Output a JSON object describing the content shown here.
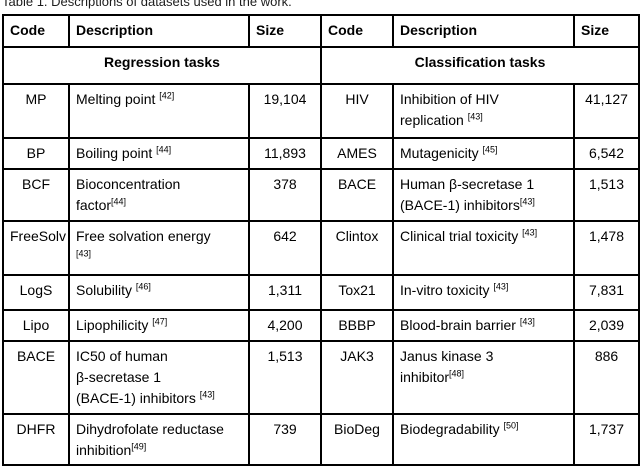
{
  "caption": "Table 1. Descriptions of datasets used in the work.",
  "colors": {
    "border": "#000000",
    "text": "#000000",
    "background": "#ffffff"
  },
  "table": {
    "headers": [
      "Code",
      "Description",
      "Size",
      "Code",
      "Description",
      "Size"
    ],
    "sections": {
      "left": "Regression tasks",
      "right": "Classification tasks"
    },
    "rows": [
      {
        "left": {
          "code": "MP",
          "desc_lines": [
            {
              "text": "Melting point ",
              "ref": "[42]"
            }
          ],
          "size": "19,104"
        },
        "right": {
          "code": "HIV",
          "desc_lines": [
            {
              "text": "Inhibition of HIV"
            },
            {
              "text": "replication ",
              "ref": "[43]"
            }
          ],
          "size": "41,127"
        }
      },
      {
        "left": {
          "code": "BP",
          "desc_lines": [
            {
              "text": "Boiling point ",
              "ref": "[44]"
            }
          ],
          "size": "11,893"
        },
        "right": {
          "code": "AMES",
          "desc_lines": [
            {
              "text": "Mutagenicity ",
              "ref": "[45]"
            }
          ],
          "size": "6,542"
        }
      },
      {
        "left": {
          "code": "BCF",
          "desc_lines": [
            {
              "text": "Bioconcentration"
            },
            {
              "text": "factor",
              "ref": "[44]"
            }
          ],
          "size": "378"
        },
        "right": {
          "code": "BACE",
          "desc_lines": [
            {
              "text": "Human β-secretase 1"
            },
            {
              "text": "(BACE-1) inhibitors",
              "ref": "[43]"
            }
          ],
          "size": "1,513"
        }
      },
      {
        "left": {
          "code": "FreeSolv",
          "desc_lines": [
            {
              "text": "Free solvation energy"
            },
            {
              "text": "",
              "ref": "[43]"
            }
          ],
          "size": "642"
        },
        "right": {
          "code": "Clintox",
          "desc_lines": [
            {
              "text": "Clinical trial toxicity ",
              "ref": "[43]"
            }
          ],
          "size": "1,478"
        }
      },
      {
        "left": {
          "code": "LogS",
          "desc_lines": [
            {
              "text": "Solubility ",
              "ref": "[46]"
            }
          ],
          "size": "1,311"
        },
        "right": {
          "code": "Tox21",
          "desc_lines": [
            {
              "text": "In-vitro toxicity ",
              "ref": "[43]"
            }
          ],
          "size": "7,831"
        }
      },
      {
        "left": {
          "code": "Lipo",
          "desc_lines": [
            {
              "text": "Lipophilicity ",
              "ref": "[47]"
            }
          ],
          "size": "4,200"
        },
        "right": {
          "code": "BBBP",
          "desc_lines": [
            {
              "text": "Blood-brain barrier ",
              "ref": "[43]"
            }
          ],
          "size": "2,039"
        }
      },
      {
        "left": {
          "code": "BACE",
          "desc_lines": [
            {
              "text": "IC50 of human"
            },
            {
              "text": "β-secretase 1"
            },
            {
              "text": "(BACE-1) inhibitors ",
              "ref": "[43]"
            }
          ],
          "size": "1,513"
        },
        "right": {
          "code": "JAK3",
          "desc_lines": [
            {
              "text": "Janus kinase 3"
            },
            {
              "text": "inhibitor",
              "ref": "[48]"
            }
          ],
          "size": "886"
        }
      },
      {
        "left": {
          "code": "DHFR",
          "desc_lines": [
            {
              "text": "Dihydrofolate reductase"
            },
            {
              "text": "inhibition",
              "ref": "[49]"
            }
          ],
          "size": "739"
        },
        "right": {
          "code": "BioDeg",
          "desc_lines": [
            {
              "text": "Biodegradability ",
              "ref": "[50]"
            }
          ],
          "size": "1,737"
        }
      }
    ]
  }
}
